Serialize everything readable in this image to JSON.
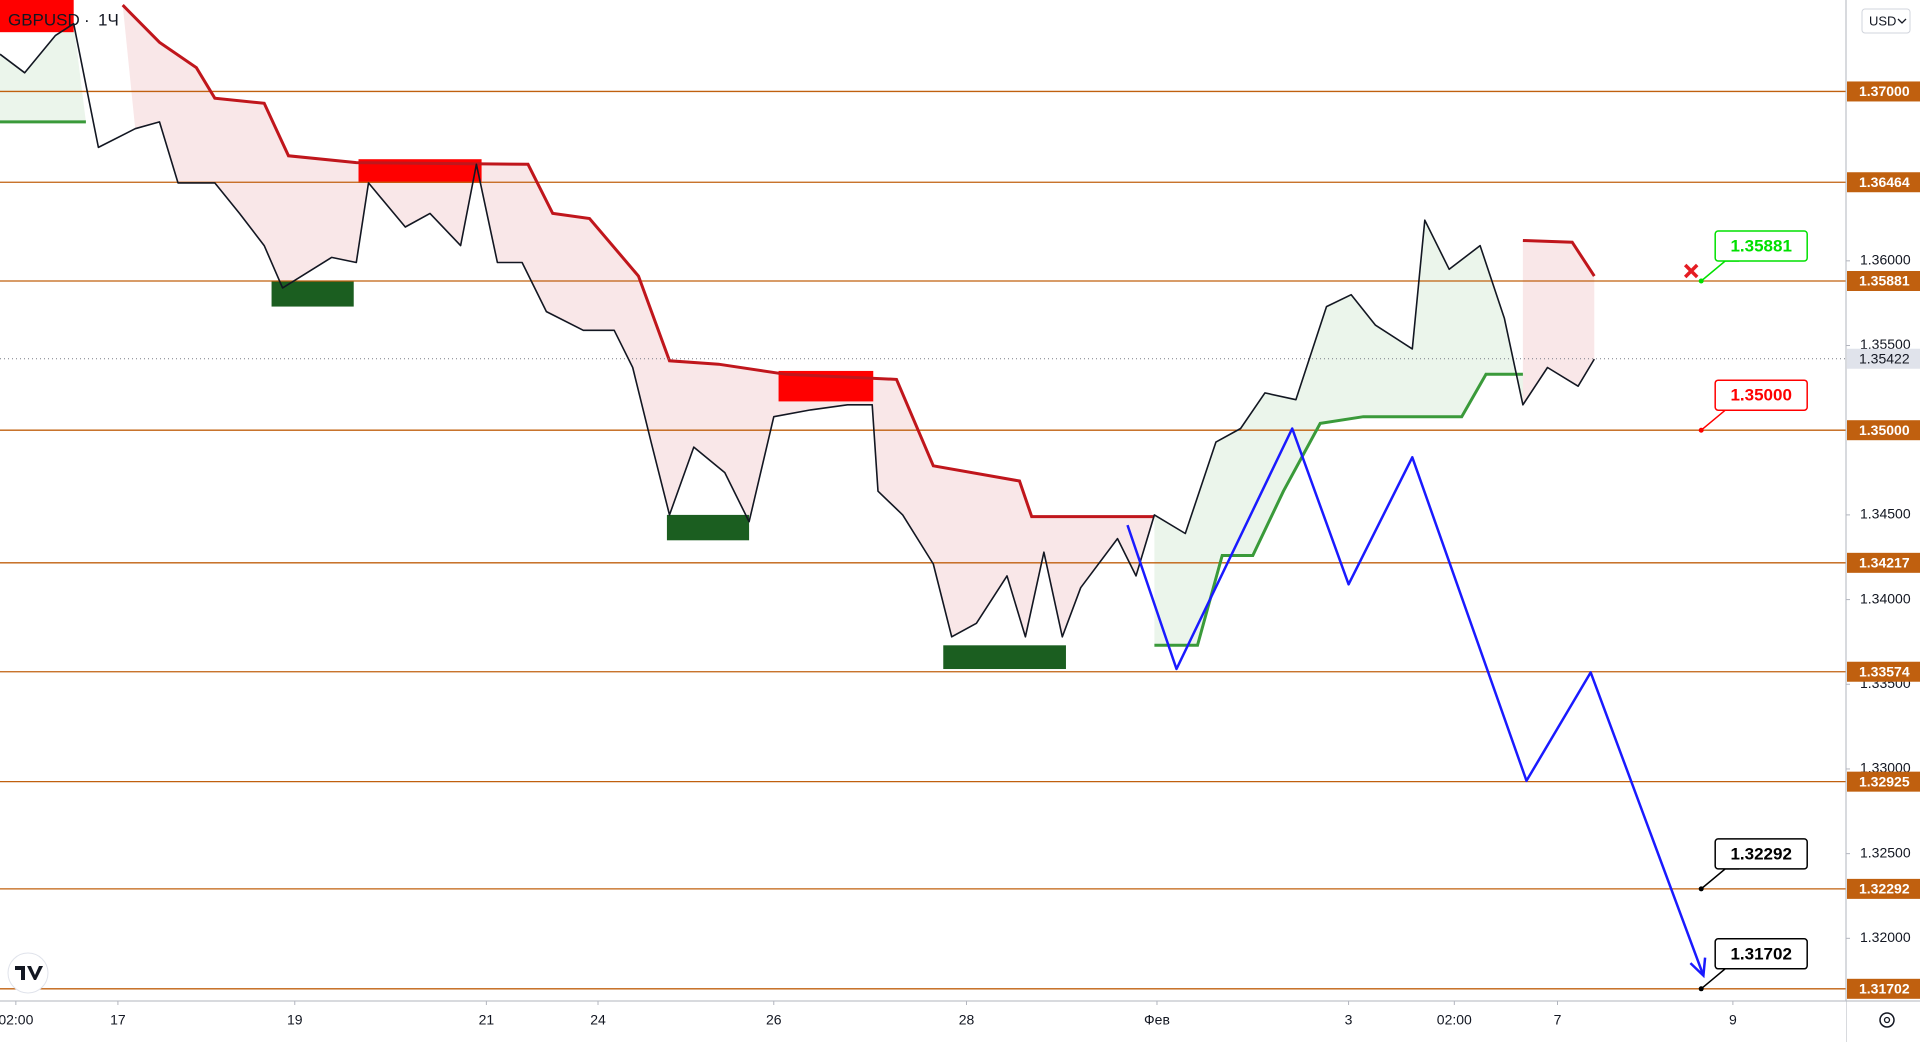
{
  "chart_data": {
    "type": "line",
    "symbol": "GBPUSD",
    "interval": "1Ч",
    "currency": "USD",
    "xlim": [
      0,
      501
    ],
    "xticks": [
      {
        "value": 4.3,
        "label": "02:00"
      },
      {
        "value": 32,
        "label": "17"
      },
      {
        "value": 80,
        "label": "19"
      },
      {
        "value": 132,
        "label": "21"
      },
      {
        "value": 162.3,
        "label": "24"
      },
      {
        "value": 210,
        "label": "26"
      },
      {
        "value": 262.3,
        "label": "28"
      },
      {
        "value": 314,
        "label": "Фев"
      },
      {
        "value": 366,
        "label": "3"
      },
      {
        "value": 394.7,
        "label": "02:00"
      },
      {
        "value": 422.7,
        "label": "7"
      },
      {
        "value": 470.3,
        "label": "9"
      }
    ],
    "ylim": [
      1.3163,
      1.3754
    ],
    "yticks": [
      {
        "value": 1.36,
        "label": "1.36000"
      },
      {
        "value": 1.355,
        "label": "1.35500"
      },
      {
        "value": 1.345,
        "label": "1.34500"
      },
      {
        "value": 1.34,
        "label": "1.34000"
      },
      {
        "value": 1.335,
        "label": "1.33500"
      },
      {
        "value": 1.33,
        "label": "1.33000"
      },
      {
        "value": 1.325,
        "label": "1.32500"
      },
      {
        "value": 1.32,
        "label": "1.32000"
      }
    ],
    "series": [
      {
        "color": "#131722",
        "x": [
          0,
          6.7,
          15,
          20,
          26.7,
          36.7,
          43.3,
          48.3,
          58.3,
          65,
          71.7,
          76.7,
          90,
          96.7,
          100,
          110,
          116.7,
          125,
          129.3,
          135,
          141.7,
          148.3,
          158.3,
          166.7,
          171.7,
          176.7,
          181.7,
          188.3,
          196.7,
          203.3,
          210,
          220,
          230,
          236.7,
          238.3,
          245,
          253.3,
          258.3,
          265,
          273.3,
          278.3,
          283.3,
          288.3,
          293.3,
          303.3,
          308.3,
          313.3,
          321.7,
          330,
          336.7,
          343.3,
          351.7,
          360,
          366.7,
          373.3,
          383.3,
          386.7,
          393.3,
          401.7,
          408.3,
          413.3,
          420,
          428.3,
          432.7
        ],
        "values": [
          1.3722,
          1.3711,
          1.3733,
          1.374,
          1.3667,
          1.3678,
          1.3682,
          1.3646,
          1.3646,
          1.3628,
          1.3609,
          1.3584,
          1.3602,
          1.3599,
          1.3646,
          1.362,
          1.3628,
          1.3609,
          1.3657,
          1.3599,
          1.3599,
          1.357,
          1.3559,
          1.3559,
          1.3537,
          1.3493,
          1.345,
          1.349,
          1.3475,
          1.3446,
          1.3508,
          1.3512,
          1.3515,
          1.3515,
          1.3464,
          1.345,
          1.3421,
          1.3378,
          1.3386,
          1.3414,
          1.3378,
          1.3428,
          1.3378,
          1.3407,
          1.3436,
          1.3414,
          1.345,
          1.3439,
          1.3493,
          1.3501,
          1.3522,
          1.3518,
          1.3573,
          1.358,
          1.3562,
          1.3548,
          1.3624,
          1.3595,
          1.3609,
          1.3566,
          1.3515,
          1.3537,
          1.3526,
          1.3542
        ]
      },
      {
        "color": "#1a1aff",
        "x": [
          306,
          319.3,
          350.7,
          366,
          383.3,
          414.3,
          431.7,
          462.3
        ],
        "values": [
          1.3444,
          1.3359,
          1.3501,
          1.3409,
          1.3484,
          1.3293,
          1.3357,
          1.3178
        ]
      }
    ],
    "trend_lines": [
      {
        "color": "#c0161c",
        "x": [
          33.3,
          43.3,
          53.3,
          58.3,
          71.7,
          78.3,
          96.7,
          143.3,
          150,
          160,
          173.3,
          181.7,
          195,
          213.3,
          243.3,
          253.3,
          276.7,
          280,
          313.3
        ],
        "values": [
          1.3751,
          1.3729,
          1.3714,
          1.3696,
          1.3693,
          1.3662,
          1.3658,
          1.3657,
          1.3628,
          1.3625,
          1.3591,
          1.3541,
          1.3539,
          1.3533,
          1.353,
          1.3479,
          1.347,
          1.3449,
          1.3449
        ]
      },
      {
        "color": "#3a9a3a",
        "x": [
          0,
          23.3
        ],
        "values": [
          1.3682,
          1.3682
        ]
      },
      {
        "color": "#3a9a3a",
        "x": [
          313.3,
          325,
          331.7,
          340,
          348.3,
          358.3,
          370,
          396.7,
          403.3,
          413.3
        ],
        "values": [
          1.3373,
          1.3373,
          1.3426,
          1.3426,
          1.3464,
          1.3504,
          1.3508,
          1.3508,
          1.3533,
          1.3533
        ]
      },
      {
        "color": "#c0161c",
        "x": [
          413.3,
          426.7,
          432.7
        ],
        "values": [
          1.3612,
          1.3611,
          1.3591
        ]
      }
    ],
    "zones": [
      {
        "color": "#ff0000",
        "x": [
          0,
          20
        ],
        "y": [
          1.3754,
          1.3735
        ]
      },
      {
        "color": "#ff0000",
        "x": [
          97.3,
          130.7
        ],
        "y": [
          1.366,
          1.3646
        ]
      },
      {
        "color": "#ff0000",
        "x": [
          211.3,
          237
        ],
        "y": [
          1.3535,
          1.3517
        ]
      },
      {
        "color": "#1b5e20",
        "x": [
          73.7,
          96
        ],
        "y": [
          1.3588,
          1.3573
        ]
      },
      {
        "color": "#1b5e20",
        "x": [
          181,
          203.3
        ],
        "y": [
          1.345,
          1.3435
        ]
      },
      {
        "color": "#1b5e20",
        "x": [
          256,
          289.3
        ],
        "y": [
          1.3373,
          1.3359
        ]
      }
    ],
    "levels": {
      "color": "#c0600f",
      "values": [
        1.37,
        1.36464,
        1.35881,
        1.35,
        1.34217,
        1.33574,
        1.32925,
        1.32292,
        1.31702
      ],
      "value_labels": [
        "1.37000",
        "1.36464",
        "1.35881",
        "1.35000",
        "1.34217",
        "1.33574",
        "1.32925",
        "1.32292",
        "1.31702"
      ]
    },
    "last_price": {
      "value": 1.35422,
      "label": "1.35422"
    },
    "callouts": [
      {
        "x": 461.7,
        "value": 1.35881,
        "label": "1.35881",
        "color": "#00e000"
      },
      {
        "x": 461.7,
        "value": 1.35,
        "label": "1.35000",
        "color": "#ff0000"
      },
      {
        "x": 461.7,
        "value": 1.32292,
        "label": "1.32292",
        "color": "#000000"
      },
      {
        "x": 461.7,
        "value": 1.31702,
        "label": "1.31702",
        "color": "#000000"
      }
    ]
  }
}
